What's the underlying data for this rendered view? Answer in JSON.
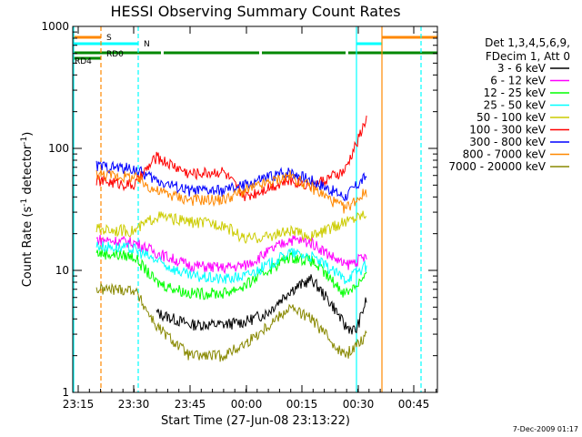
{
  "chart_data": {
    "type": "line",
    "title": "HESSI Observing Summary Count Rates",
    "xlabel": "Start Time (27-Jun-08 23:13:22)",
    "ylabel_parts": [
      "Count Rate (s",
      "-1",
      " detector",
      "-1",
      ")"
    ],
    "yscale": "log",
    "ylim": [
      1,
      1000
    ],
    "xlim_minutes_label": "23:13 to 00:52",
    "x_ticks": [
      "23:15",
      "23:30",
      "23:45",
      "00:00",
      "00:15",
      "00:30",
      "00:45"
    ],
    "y_ticks": [
      "1",
      "10",
      "100",
      "1000"
    ],
    "legend_header": [
      "Det 1,3,4,5,6,9,",
      "FDecim 1, Att 0"
    ],
    "series": [
      {
        "name": "3 - 6 keV",
        "color": "#000000",
        "points": [
          [
            23.4,
            null
          ],
          [
            23.5,
            null
          ],
          [
            23.6,
            4.5
          ],
          [
            23.75,
            3.6
          ],
          [
            23.9,
            3.6
          ],
          [
            24.0,
            3.8
          ],
          [
            24.1,
            4.5
          ],
          [
            24.2,
            6.8
          ],
          [
            24.3,
            8.5
          ],
          [
            24.4,
            5.0
          ],
          [
            24.45,
            3.5
          ],
          [
            24.5,
            3.2
          ],
          [
            24.55,
            6.0
          ]
        ]
      },
      {
        "name": "6 - 12 keV",
        "color": "#ff00ff",
        "points": [
          [
            23.33,
            18
          ],
          [
            23.5,
            17
          ],
          [
            23.6,
            14
          ],
          [
            23.75,
            11
          ],
          [
            23.9,
            10.5
          ],
          [
            24.0,
            11
          ],
          [
            24.1,
            14
          ],
          [
            24.2,
            18
          ],
          [
            24.3,
            17
          ],
          [
            24.45,
            11
          ],
          [
            24.55,
            13
          ]
        ]
      },
      {
        "name": "12 - 25 keV",
        "color": "#00ff00",
        "points": [
          [
            23.33,
            14
          ],
          [
            23.5,
            13
          ],
          [
            23.6,
            8
          ],
          [
            23.75,
            6.5
          ],
          [
            23.9,
            6.5
          ],
          [
            24.0,
            7.5
          ],
          [
            24.1,
            10
          ],
          [
            24.2,
            13
          ],
          [
            24.3,
            12
          ],
          [
            24.45,
            6.5
          ],
          [
            24.55,
            9
          ]
        ]
      },
      {
        "name": "25 - 50 keV",
        "color": "#00ffff",
        "points": [
          [
            23.33,
            16
          ],
          [
            23.5,
            15
          ],
          [
            23.6,
            12
          ],
          [
            23.75,
            9
          ],
          [
            23.9,
            8.5
          ],
          [
            24.0,
            9
          ],
          [
            24.1,
            11
          ],
          [
            24.2,
            14
          ],
          [
            24.3,
            13
          ],
          [
            24.45,
            8.5
          ],
          [
            24.55,
            11
          ]
        ]
      },
      {
        "name": "50 - 100 keV",
        "color": "#cccc00",
        "points": [
          [
            23.33,
            22
          ],
          [
            23.5,
            21
          ],
          [
            23.6,
            28
          ],
          [
            23.75,
            25
          ],
          [
            23.9,
            24
          ],
          [
            24.0,
            18
          ],
          [
            24.1,
            19
          ],
          [
            24.2,
            21
          ],
          [
            24.3,
            19
          ],
          [
            24.45,
            25
          ],
          [
            24.55,
            30
          ]
        ]
      },
      {
        "name": "100 - 300 keV",
        "color": "#ff0000",
        "points": [
          [
            23.33,
            55
          ],
          [
            23.5,
            50
          ],
          [
            23.6,
            85
          ],
          [
            23.75,
            62
          ],
          [
            23.9,
            65
          ],
          [
            24.0,
            40
          ],
          [
            24.1,
            48
          ],
          [
            24.2,
            55
          ],
          [
            24.3,
            50
          ],
          [
            24.45,
            65
          ],
          [
            24.55,
            180
          ]
        ]
      },
      {
        "name": "300 - 800 keV",
        "color": "#0000ff",
        "points": [
          [
            23.33,
            72
          ],
          [
            23.5,
            68
          ],
          [
            23.6,
            55
          ],
          [
            23.75,
            45
          ],
          [
            23.9,
            45
          ],
          [
            24.0,
            50
          ],
          [
            24.1,
            58
          ],
          [
            24.2,
            65
          ],
          [
            24.3,
            55
          ],
          [
            24.45,
            40
          ],
          [
            24.55,
            60
          ]
        ]
      },
      {
        "name": "800 - 7000 keV",
        "color": "#ff8800",
        "points": [
          [
            23.33,
            62
          ],
          [
            23.5,
            58
          ],
          [
            23.6,
            45
          ],
          [
            23.75,
            38
          ],
          [
            23.9,
            38
          ],
          [
            24.0,
            45
          ],
          [
            24.1,
            52
          ],
          [
            24.2,
            60
          ],
          [
            24.3,
            48
          ],
          [
            24.45,
            32
          ],
          [
            24.55,
            45
          ]
        ]
      },
      {
        "name": "7000 - 20000 keV",
        "color": "#888800",
        "points": [
          [
            23.33,
            7
          ],
          [
            23.5,
            7
          ],
          [
            23.6,
            3.5
          ],
          [
            23.75,
            2
          ],
          [
            23.9,
            2
          ],
          [
            24.0,
            2.5
          ],
          [
            24.1,
            3.5
          ],
          [
            24.2,
            5
          ],
          [
            24.3,
            4
          ],
          [
            24.45,
            2
          ],
          [
            24.55,
            3
          ]
        ]
      }
    ],
    "status_bars": [
      {
        "label": "S",
        "color": "#ff8800"
      },
      {
        "label": "N",
        "color": "#00ffff"
      },
      {
        "label": "RD0",
        "color": "#008800"
      },
      {
        "label": "RD4",
        "color": "#008800"
      }
    ],
    "grid": false,
    "legend_position": "right"
  },
  "footer_date": "7-Dec-2009 01:17"
}
